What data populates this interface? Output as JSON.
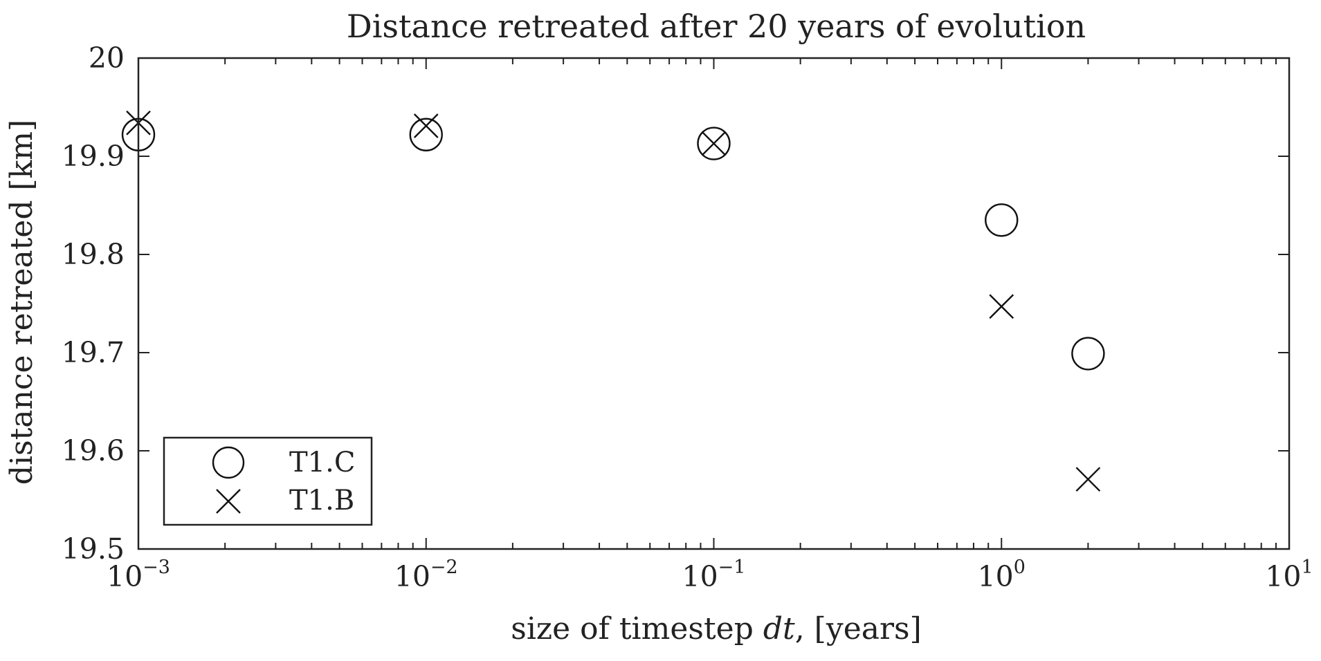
{
  "chart_data": {
    "type": "scatter",
    "title": "Distance retreated after 20 years of evolution",
    "xlabel": {
      "prefix": "size of timestep ",
      "italic": "dt",
      "suffix": ", [years]"
    },
    "ylabel": "distance retreated [km]",
    "xscale": "log",
    "xlim": [
      0.001,
      10
    ],
    "ylim": [
      19.5,
      20
    ],
    "xticks": [
      {
        "base": "10",
        "exp": "−3",
        "value": 0.001
      },
      {
        "base": "10",
        "exp": "−2",
        "value": 0.01
      },
      {
        "base": "10",
        "exp": "−1",
        "value": 0.1
      },
      {
        "base": "10",
        "exp": "0",
        "value": 1
      },
      {
        "base": "10",
        "exp": "1",
        "value": 10
      }
    ],
    "yticks": [
      {
        "label": "19.5",
        "value": 19.5
      },
      {
        "label": "19.6",
        "value": 19.6
      },
      {
        "label": "19.7",
        "value": 19.7
      },
      {
        "label": "19.8",
        "value": 19.8
      },
      {
        "label": "19.9",
        "value": 19.9
      },
      {
        "label": "20",
        "value": 20
      }
    ],
    "grid": false,
    "legend_position": "bottom-left",
    "series": [
      {
        "name": "T1.C",
        "marker": "circle",
        "color": "#111111",
        "x": [
          0.001,
          0.01,
          0.1,
          1,
          2
        ],
        "y": [
          19.922,
          19.922,
          19.913,
          19.835,
          19.699
        ]
      },
      {
        "name": "T1.B",
        "marker": "x",
        "color": "#111111",
        "x": [
          0.001,
          0.01,
          0.1,
          1,
          2
        ],
        "y": [
          19.934,
          19.931,
          19.913,
          19.747,
          19.571
        ]
      }
    ]
  }
}
